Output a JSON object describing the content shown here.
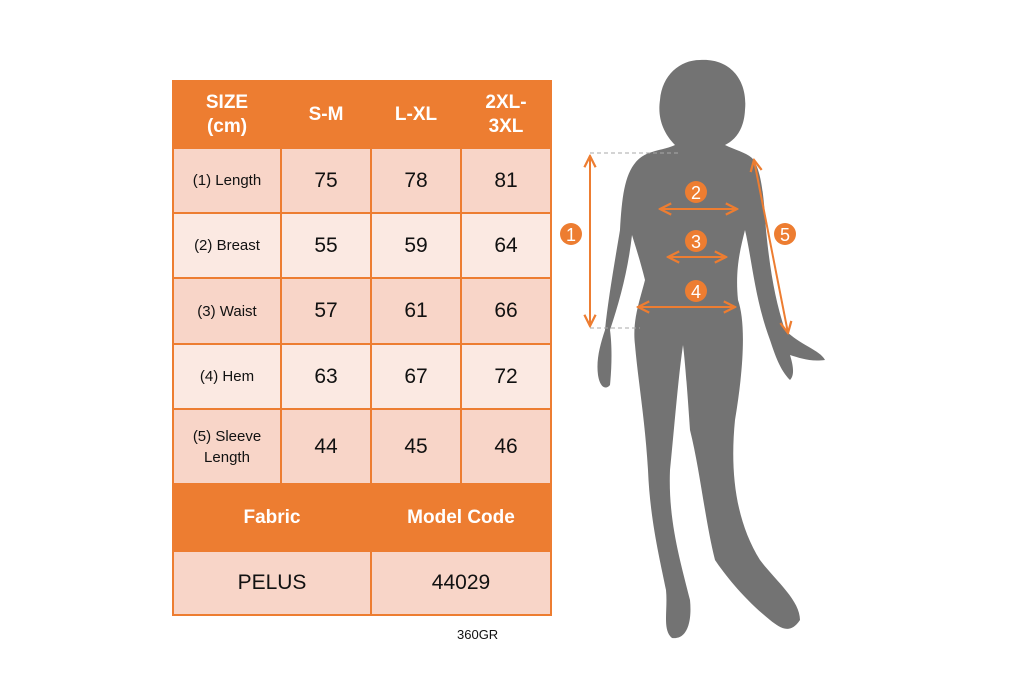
{
  "table": {
    "header": [
      "SIZE (cm)",
      "S-M",
      "L-XL",
      "2XL-3XL"
    ],
    "rows": [
      {
        "label": "(1) Length",
        "values": [
          "75",
          "78",
          "81"
        ]
      },
      {
        "label": "(2) Breast",
        "values": [
          "55",
          "59",
          "64"
        ]
      },
      {
        "label": "(3) Waist",
        "values": [
          "57",
          "61",
          "66"
        ]
      },
      {
        "label": "(4) Hem",
        "values": [
          "63",
          "67",
          "72"
        ]
      },
      {
        "label": "(5) Sleeve Length",
        "values": [
          "44",
          "45",
          "46"
        ]
      }
    ],
    "footer_header": [
      "Fabric",
      "Model Code"
    ],
    "footer_values": [
      "PELUS",
      "44029"
    ]
  },
  "fabric_weight": "360GR",
  "figure": {
    "markers": [
      "1",
      "2",
      "3",
      "4",
      "5"
    ]
  },
  "colors": {
    "accent": "#ED7D31",
    "cell_dark": "#F8D5C8",
    "cell_light": "#FBE9E2",
    "silhouette": "#737373"
  }
}
